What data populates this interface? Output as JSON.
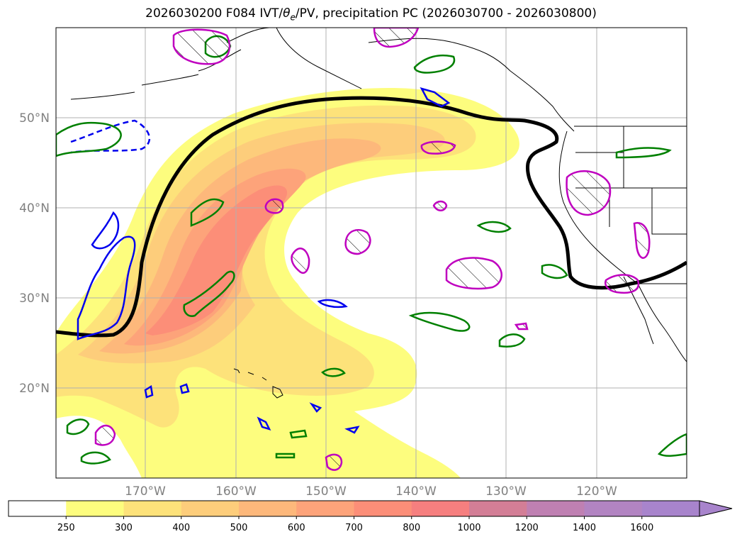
{
  "title": {
    "prefix": "2026030200 F084 IVT/",
    "theta": "θ",
    "theta_sub": "e",
    "suffix": "/PV, precipitation PC (2026030700 - 2026030800)"
  },
  "map": {
    "lon_range": [
      -180,
      -110
    ],
    "lat_range": [
      10,
      60
    ],
    "lon_ticks": [
      {
        "value": -170,
        "label": "170°W"
      },
      {
        "value": -160,
        "label": "160°W"
      },
      {
        "value": -150,
        "label": "150°W"
      },
      {
        "value": -140,
        "label": "140°W"
      },
      {
        "value": -130,
        "label": "130°W"
      },
      {
        "value": -120,
        "label": "120°W"
      }
    ],
    "lat_ticks": [
      {
        "value": 20,
        "label": "20°N"
      },
      {
        "value": 30,
        "label": "30°N"
      },
      {
        "value": 40,
        "label": "40°N"
      },
      {
        "value": 50,
        "label": "50°N"
      }
    ],
    "grid": true
  },
  "colorbar": {
    "levels": [
      "250",
      "300",
      "400",
      "500",
      "600",
      "700",
      "800",
      "1000",
      "1200",
      "1400",
      "1600"
    ],
    "colors": [
      "#ffffff",
      "#fdfd7e",
      "#fde27a",
      "#fdcd7b",
      "#fdb87b",
      "#fda37a",
      "#fc8e78",
      "#f67f7f",
      "#d37e96",
      "#bf80b2",
      "#b284c2",
      "#a884cc"
    ],
    "extend": "max"
  },
  "layers": {
    "ivt_fill_colors": [
      "#fdfd7e",
      "#fde27a",
      "#fdcd7b",
      "#fdb87b",
      "#fda37a",
      "#fc8e78"
    ],
    "theta_e_color": "#000000",
    "pv_color": "#0000ee",
    "precip_pos_color": "#008000",
    "precip_neg_color": "#bf00bf"
  }
}
